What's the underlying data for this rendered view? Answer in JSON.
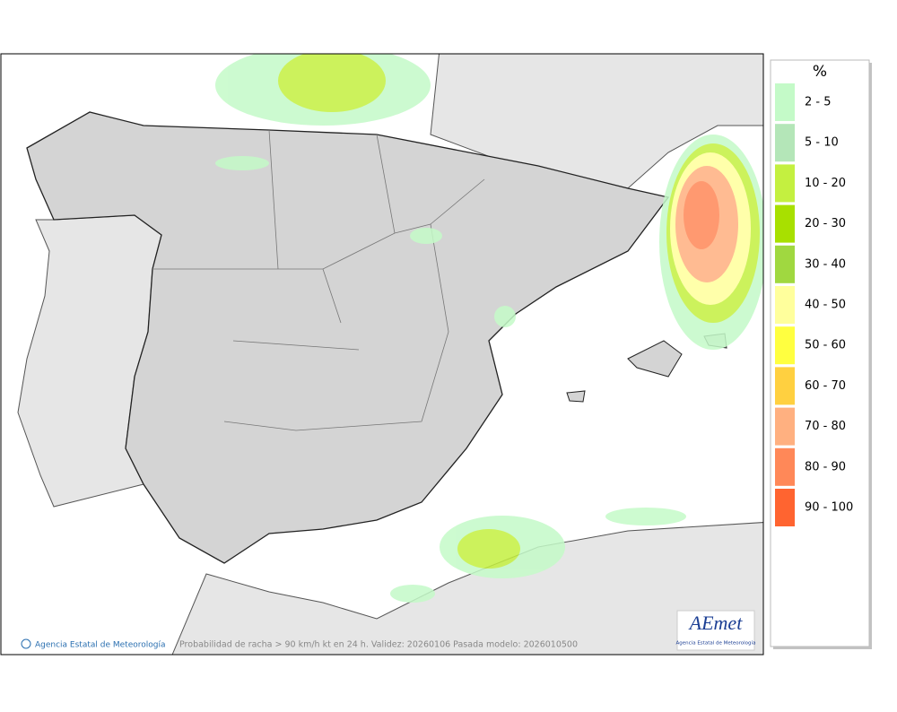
{
  "legend": {
    "title": "%",
    "items": [
      {
        "label": "2 - 5",
        "color": "#c4fac8"
      },
      {
        "label": "5 - 10",
        "color": "#b4e6b8"
      },
      {
        "label": "10 - 20",
        "color": "#c4f040"
      },
      {
        "label": "20 - 30",
        "color": "#a8e000"
      },
      {
        "label": "30 - 40",
        "color": "#a0d840"
      },
      {
        "label": "40 - 50",
        "color": "#ffff9c"
      },
      {
        "label": "50 - 60",
        "color": "#ffff40"
      },
      {
        "label": "60 - 70",
        "color": "#ffd040"
      },
      {
        "label": "70 - 80",
        "color": "#ffb080"
      },
      {
        "label": "80 - 90",
        "color": "#ff8858"
      },
      {
        "label": "90 - 100",
        "color": "#ff6430"
      }
    ]
  },
  "footer": {
    "credit": "Agencia Estatal de Meteorología",
    "caption": "Probabilidad de racha > 90 km/h kt en 24 h. Validez: 20260106 Pasada modelo: 2026010500"
  },
  "logo": {
    "name": "AEmet",
    "subtitle": "Agencia Estatal de Meteorología"
  }
}
